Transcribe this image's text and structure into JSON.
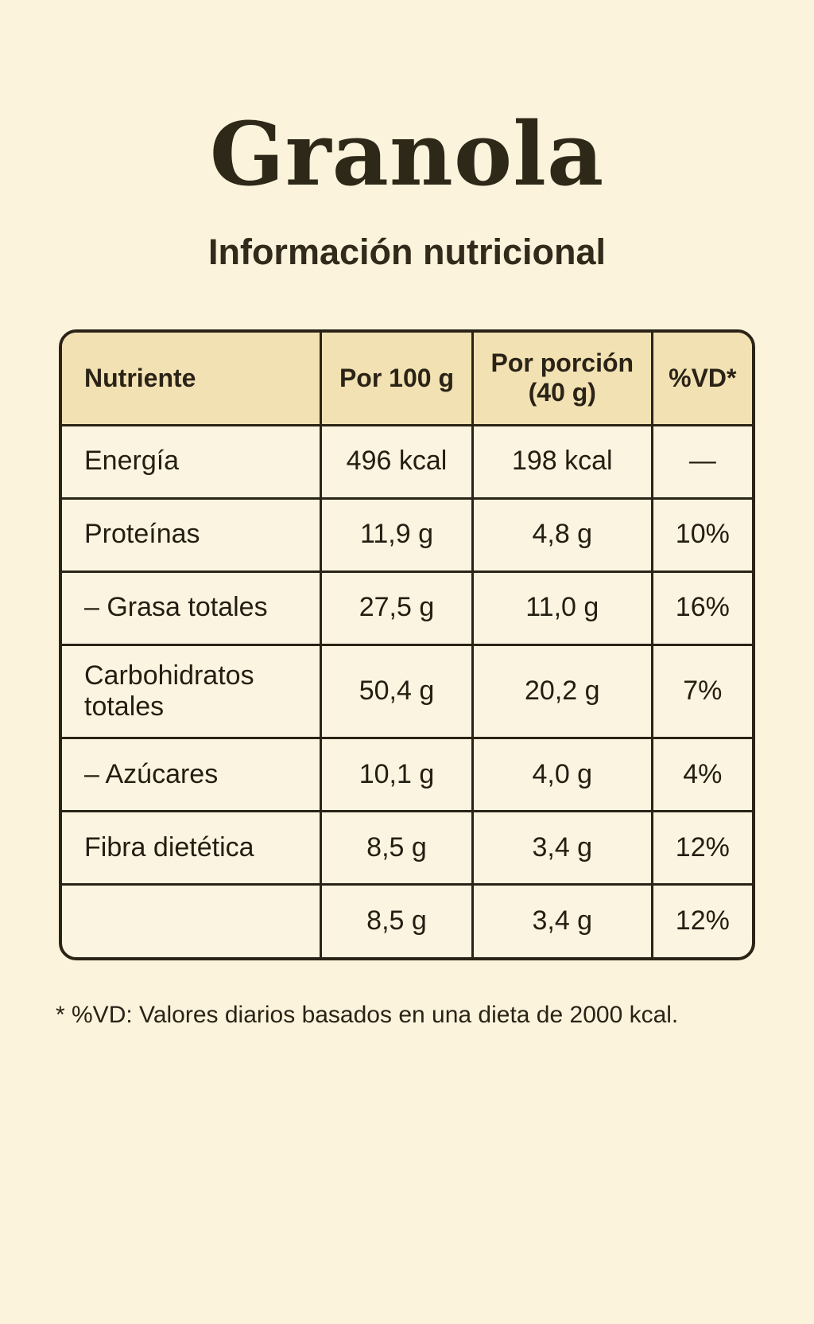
{
  "page": {
    "title": "Granola",
    "subtitle": "Información nutricional",
    "footnote": "* %VD: Valores diarios basados en una dieta de 2000 kcal."
  },
  "colors": {
    "page_background": "#fbf3dc",
    "header_background": "#f2e1b3",
    "border": "#2a2316",
    "text": "#2a2316"
  },
  "table": {
    "headers": {
      "nutrient": "Nutriente",
      "per_100g": "Por 100 g",
      "per_portion": "Por porción (40 g)",
      "daily_value": "%VD*"
    },
    "rows": [
      {
        "name": "Energía",
        "per100": "496 kcal",
        "portion": "198 kcal",
        "vd": "—"
      },
      {
        "name": "Proteínas",
        "per100": "11,9 g",
        "portion": "4,8 g",
        "vd": "10%"
      },
      {
        "name": "– Grasa totales",
        "per100": "27,5 g",
        "portion": "11,0 g",
        "vd": "16%"
      },
      {
        "name": "Carbohidratos totales",
        "per100": "50,4 g",
        "portion": "20,2 g",
        "vd": "7%"
      },
      {
        "name": "– Azúcares",
        "per100": "10,1 g",
        "portion": "4,0 g",
        "vd": "4%"
      },
      {
        "name": "Fibra dietética",
        "per100": "8,5 g",
        "portion": "3,4 g",
        "vd": "12%"
      },
      {
        "name": "",
        "per100": "8,5 g",
        "portion": "3,4 g",
        "vd": "12%"
      }
    ]
  }
}
